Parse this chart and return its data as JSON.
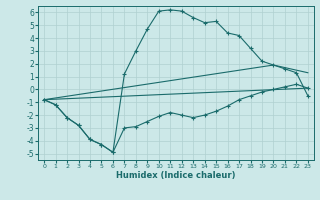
{
  "xlabel": "Humidex (Indice chaleur)",
  "bg_color": "#cce8e8",
  "line_color": "#1a6b6b",
  "grid_color": "#b0d0d0",
  "xlim": [
    -0.5,
    23.5
  ],
  "ylim": [
    -5.5,
    6.5
  ],
  "xticks": [
    0,
    1,
    2,
    3,
    4,
    5,
    6,
    7,
    8,
    9,
    10,
    11,
    12,
    13,
    14,
    15,
    16,
    17,
    18,
    19,
    20,
    21,
    22,
    23
  ],
  "yticks": [
    -5,
    -4,
    -3,
    -2,
    -1,
    0,
    1,
    2,
    3,
    4,
    5,
    6
  ],
  "line1_x": [
    0,
    1,
    2,
    3,
    4,
    5,
    6,
    7,
    8,
    9,
    10,
    11,
    12,
    13,
    14,
    15,
    16,
    17,
    18,
    19,
    20,
    21,
    22,
    23
  ],
  "line1_y": [
    -0.8,
    -1.2,
    -2.2,
    -2.8,
    -3.9,
    -4.3,
    -4.9,
    -3.0,
    -2.9,
    -2.5,
    -2.1,
    -1.8,
    -2.0,
    -2.2,
    -2.0,
    -1.7,
    -1.3,
    -0.8,
    -0.5,
    -0.2,
    0.0,
    0.2,
    0.4,
    0.1
  ],
  "line2_x": [
    0,
    1,
    2,
    3,
    4,
    5,
    6,
    7,
    8,
    9,
    10,
    11,
    12,
    13,
    14,
    15,
    16,
    17,
    18,
    19,
    20,
    21,
    22,
    23
  ],
  "line2_y": [
    -0.8,
    -1.2,
    -2.2,
    -2.8,
    -3.9,
    -4.3,
    -4.9,
    1.2,
    3.0,
    4.7,
    6.1,
    6.2,
    6.1,
    5.6,
    5.2,
    5.3,
    4.4,
    4.2,
    3.2,
    2.2,
    1.9,
    1.6,
    1.3,
    -0.5
  ],
  "line3_x": [
    0,
    23
  ],
  "line3_y": [
    -0.8,
    0.1
  ],
  "line4_x": [
    0,
    20,
    23
  ],
  "line4_y": [
    -0.8,
    1.9,
    1.3
  ]
}
